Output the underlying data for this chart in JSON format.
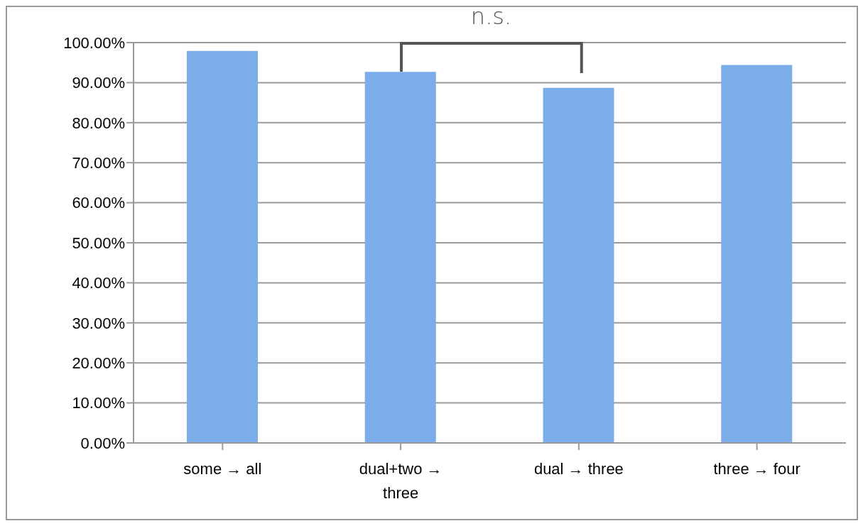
{
  "chart_data": {
    "type": "bar",
    "categories": [
      "some → all",
      "dual+two → three",
      "dual → three",
      "three → four"
    ],
    "values": [
      97.9,
      92.7,
      88.7,
      94.4
    ],
    "color": "#7aade9",
    "ylim": [
      0,
      100
    ],
    "yticks": [
      {
        "value": 0,
        "label": "0.00%"
      },
      {
        "value": 10,
        "label": "10.00%"
      },
      {
        "value": 20,
        "label": "20.00%"
      },
      {
        "value": 30,
        "label": "30.00%"
      },
      {
        "value": 40,
        "label": "40.00%"
      },
      {
        "value": 50,
        "label": "50.00%"
      },
      {
        "value": 60,
        "label": "60.00%"
      },
      {
        "value": 70,
        "label": "70.00%"
      },
      {
        "value": 80,
        "label": "80.00%"
      },
      {
        "value": 90,
        "label": "90.00%"
      },
      {
        "value": 100,
        "label": "100.00%"
      }
    ],
    "grid": "y",
    "annotations": [
      "n.s."
    ]
  }
}
